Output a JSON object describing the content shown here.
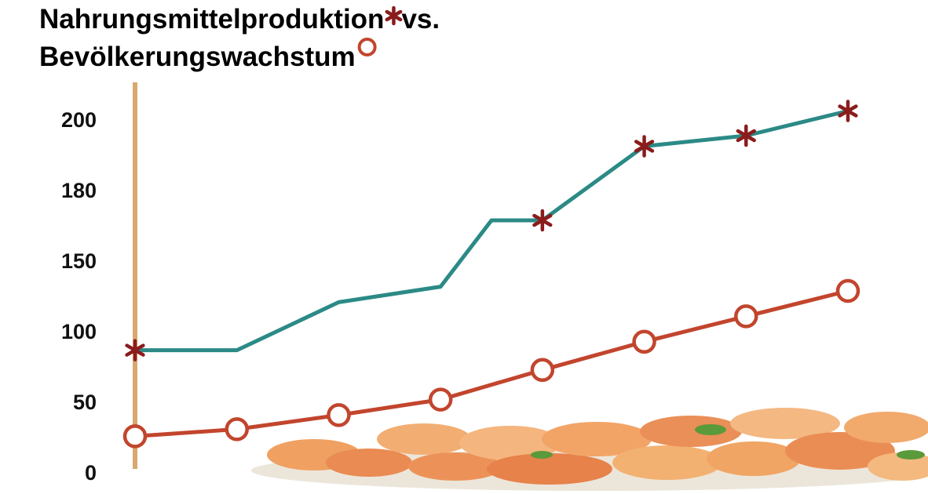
{
  "chart_data": {
    "type": "line",
    "title_joiner": "vs.",
    "ylim": [
      0,
      200
    ],
    "yticks": [
      0,
      50,
      100,
      150,
      180,
      200
    ],
    "xlim": [
      0,
      7
    ],
    "series": [
      {
        "name": "Nahrungsmittelproduktion",
        "color": "#2b8a86",
        "marker": "star",
        "marker_color": "#8b1c1c",
        "x": [
          0,
          1,
          2,
          3,
          3.5,
          4,
          5,
          6,
          7
        ],
        "values": [
          88,
          88,
          122,
          133,
          168,
          168,
          193,
          196,
          203
        ],
        "markers": [
          true,
          false,
          false,
          false,
          false,
          true,
          true,
          true,
          true
        ]
      },
      {
        "name": "Bevölkerungswachstum",
        "color": "#c2452d",
        "marker": "circle",
        "marker_color": "#c2452d",
        "x": [
          0,
          1,
          2,
          3,
          4,
          5,
          6,
          7
        ],
        "values": [
          27,
          32,
          42,
          53,
          74,
          94,
          112,
          130
        ],
        "markers": [
          true,
          true,
          true,
          true,
          true,
          true,
          true,
          true
        ]
      }
    ]
  }
}
